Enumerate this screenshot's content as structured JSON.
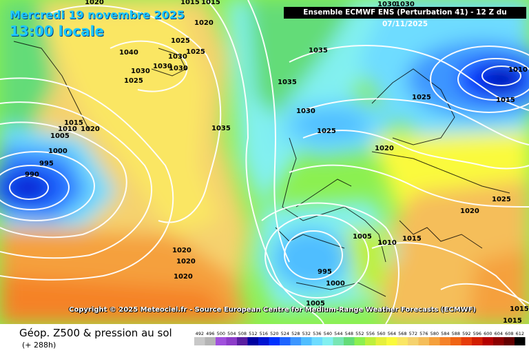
{
  "header": {
    "date_line": "Mercredi 19 novembre 2025",
    "local_time": "13:00 locale",
    "run_info": "Ensemble ECMWF ENS  (Perturbation 41)  -  12 Z du 07/11/2025"
  },
  "footer": {
    "copyright": "Copyright © 2025 Meteociel.fr - Source European Centre for Medium-Range Weather Forecasts (ECMWF)",
    "product_title": "Géop. Z500 & pression au sol",
    "forecast_hour": "(+ 288h)"
  },
  "legend": {
    "values": [
      "492",
      "496",
      "500",
      "504",
      "508",
      "512",
      "516",
      "520",
      "524",
      "528",
      "532",
      "536",
      "540",
      "544",
      "548",
      "552",
      "556",
      "560",
      "564",
      "568",
      "572",
      "576",
      "580",
      "584",
      "588",
      "592",
      "596",
      "600",
      "604",
      "608",
      "612"
    ],
    "colors": [
      "#c8c8c8",
      "#b4b4b4",
      "#a050dc",
      "#8c3cc8",
      "#5a1ea0",
      "#0000a0",
      "#0014d2",
      "#0032ff",
      "#1e64ff",
      "#3c96ff",
      "#50beff",
      "#6edcff",
      "#82f0f0",
      "#78e6b4",
      "#64dc78",
      "#8cf050",
      "#bef03c",
      "#e6f03c",
      "#fafa3c",
      "#fae664",
      "#f5d26e",
      "#f5be5a",
      "#f5a03c",
      "#f58228",
      "#f06414",
      "#e63c0a",
      "#d21e00",
      "#b40000",
      "#8c0000",
      "#640000",
      "#000000"
    ]
  },
  "pressure_labels": [
    {
      "text": "1020"
    },
    {
      "text": "1015"
    },
    {
      "text": "1015"
    },
    {
      "text": "1020"
    },
    {
      "text": "1040"
    },
    {
      "text": "1030"
    },
    {
      "text": "1025"
    },
    {
      "text": "1030"
    },
    {
      "text": "1025"
    },
    {
      "text": "1030"
    },
    {
      "text": "1025"
    },
    {
      "text": "1030"
    },
    {
      "text": "1035"
    },
    {
      "text": "1035"
    },
    {
      "text": "1030"
    },
    {
      "text": "1025"
    },
    {
      "text": "1035"
    },
    {
      "text": "1015"
    },
    {
      "text": "1010"
    },
    {
      "text": "1020"
    },
    {
      "text": "1005"
    },
    {
      "text": "1000"
    },
    {
      "text": "995"
    },
    {
      "text": "990"
    },
    {
      "text": "1030"
    },
    {
      "text": "1030"
    },
    {
      "text": "1010"
    },
    {
      "text": "1025"
    },
    {
      "text": "1015"
    },
    {
      "text": "1020"
    },
    {
      "text": "1020"
    },
    {
      "text": "1025"
    },
    {
      "text": "1005"
    },
    {
      "text": "1010"
    },
    {
      "text": "1015"
    },
    {
      "text": "995"
    },
    {
      "text": "1000"
    },
    {
      "text": "1020"
    },
    {
      "text": "1020"
    },
    {
      "text": "1020"
    },
    {
      "text": "1005"
    },
    {
      "text": "1015"
    },
    {
      "text": "1015"
    }
  ]
}
